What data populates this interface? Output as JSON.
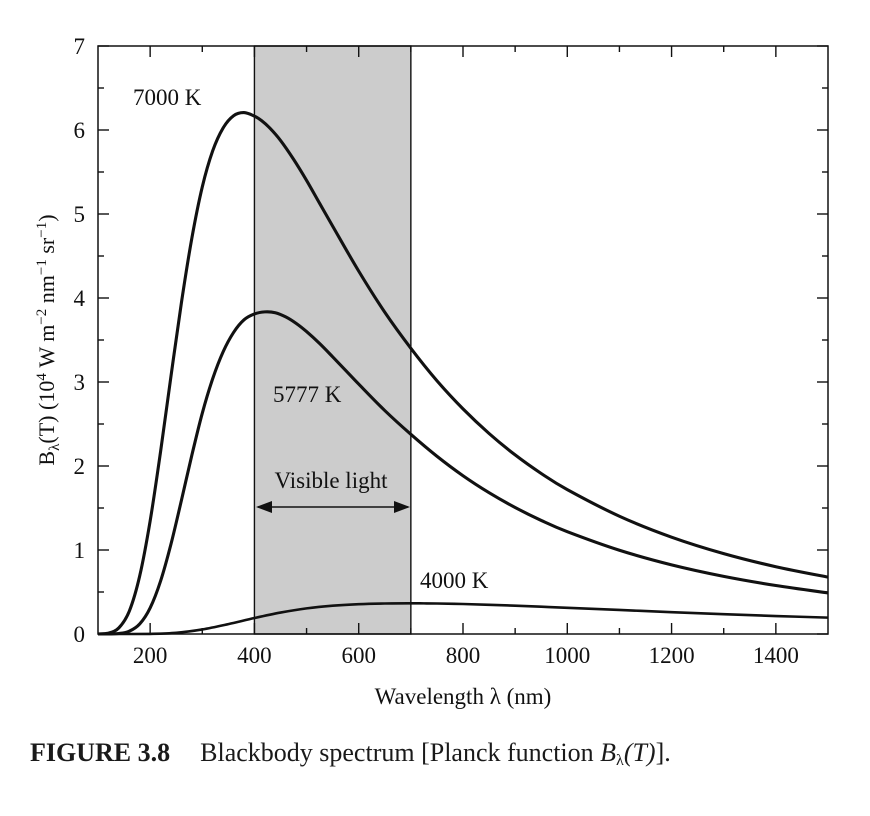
{
  "figure": {
    "caption_label": "FIGURE 3.8",
    "caption_text": "Blackbody spectrum [Planck function ",
    "caption_math": "B",
    "caption_sub": "λ",
    "caption_arg": "(T)",
    "caption_end": "]."
  },
  "chart_data": {
    "type": "line",
    "title": "",
    "xlabel": "Wavelength  λ (nm)",
    "ylabel_parts": {
      "b": "B",
      "sub": "λ",
      "paren_t": "(T) (10",
      "exp4": "4",
      "w_m": " W m",
      "exp_m2": "−2",
      "nm": " nm",
      "exp_m1a": "−1",
      "sr": " sr",
      "exp_m1b": "−1",
      "close": ")"
    },
    "xlim": [
      100,
      1500
    ],
    "ylim": [
      0,
      7
    ],
    "x_ticks": [
      200,
      400,
      600,
      800,
      1000,
      1200,
      1400
    ],
    "x_tick_labels": [
      "200",
      "400",
      "600",
      "800",
      "1000",
      "1200",
      "1400"
    ],
    "y_ticks": [
      0,
      1,
      2,
      3,
      4,
      5,
      6,
      7
    ],
    "y_tick_labels": [
      "0",
      "1",
      "2",
      "3",
      "4",
      "5",
      "6",
      "7"
    ],
    "grid": false,
    "shaded_region": {
      "x_start": 400,
      "x_end": 700,
      "label": "Visible light",
      "color": "#cccccc"
    },
    "series": [
      {
        "name": "7000 K",
        "x": [
          100,
          120,
          140,
          160,
          180,
          200,
          220,
          240,
          260,
          280,
          300,
          320,
          340,
          360,
          380,
          400,
          414,
          430,
          450,
          475,
          500,
          525,
          550,
          600,
          650,
          700,
          750,
          800,
          850,
          900,
          950,
          1000,
          1100,
          1200,
          1300,
          1400,
          1500
        ],
        "values": [
          0.0007,
          0.0108,
          0.0729,
          0.2717,
          0.6919,
          1.3457,
          2.1713,
          3.0708,
          3.945,
          4.7127,
          5.3226,
          5.7526,
          6.025,
          6.17,
          6.207,
          6.165,
          6.11,
          6.02,
          5.876,
          5.652,
          5.4,
          5.127,
          4.856,
          4.32,
          3.83,
          3.401,
          3.015,
          2.68,
          2.387,
          2.132,
          1.911,
          1.719,
          1.402,
          1.153,
          0.957,
          0.801,
          0.677
        ]
      },
      {
        "name": "5777 K",
        "x": [
          100,
          120,
          140,
          160,
          180,
          200,
          220,
          240,
          260,
          280,
          300,
          320,
          340,
          360,
          380,
          400,
          420,
          440,
          460,
          480,
          500,
          525,
          550,
          575,
          600,
          650,
          700,
          750,
          800,
          850,
          900,
          950,
          1000,
          1100,
          1200,
          1300,
          1400,
          1500
        ],
        "values": [
          0.0,
          0.0005,
          0.0057,
          0.0331,
          0.1195,
          0.3103,
          0.6302,
          1.0713,
          1.5914,
          2.129,
          2.629,
          3.04,
          3.36,
          3.59,
          3.74,
          3.81,
          3.835,
          3.825,
          3.775,
          3.698,
          3.6,
          3.458,
          3.3,
          3.138,
          2.975,
          2.66,
          2.377,
          2.116,
          1.884,
          1.682,
          1.506,
          1.352,
          1.218,
          0.997,
          0.823,
          0.686,
          0.577,
          0.489
        ]
      },
      {
        "name": "4000 K",
        "x": [
          100,
          150,
          200,
          250,
          300,
          350,
          400,
          450,
          500,
          550,
          600,
          650,
          700,
          725,
          750,
          800,
          850,
          900,
          950,
          1000,
          1100,
          1200,
          1300,
          1400,
          1500
        ],
        "values": [
          0.0,
          0.0,
          0.0013,
          0.0141,
          0.0545,
          0.118,
          0.19,
          0.255,
          0.305,
          0.337,
          0.355,
          0.363,
          0.365,
          0.3645,
          0.363,
          0.357,
          0.348,
          0.337,
          0.325,
          0.312,
          0.286,
          0.26,
          0.236,
          0.214,
          0.195
        ]
      }
    ]
  },
  "colors": {
    "curve": "#111111",
    "shade": "#cccccc",
    "axis": "#111111"
  }
}
